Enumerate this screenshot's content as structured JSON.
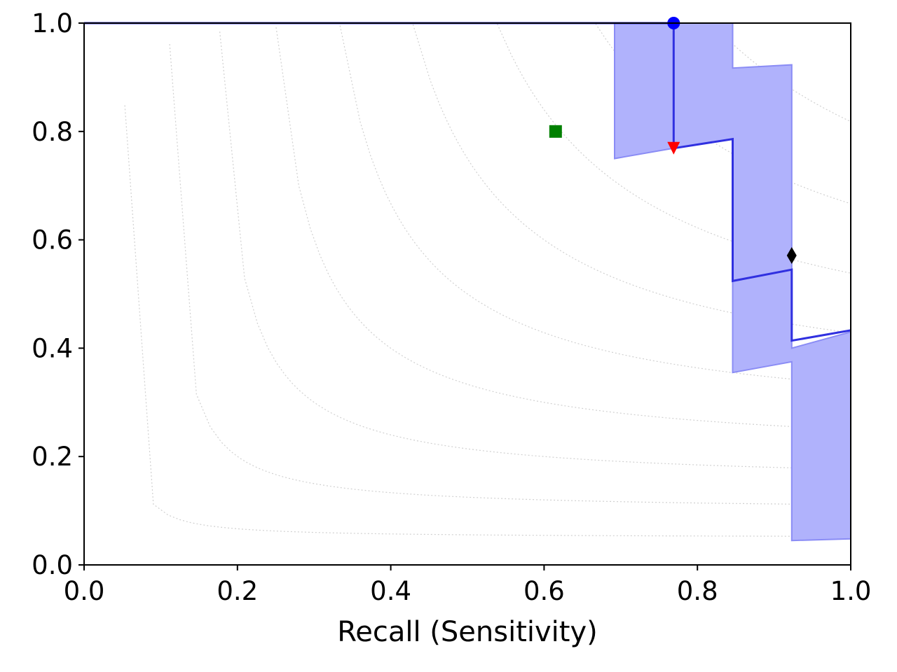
{
  "chart_data": {
    "type": "line",
    "title": "",
    "xlabel": "Recall (Sensitivity)",
    "ylabel": "",
    "xlim": [
      0.0,
      1.0
    ],
    "ylim": [
      0.0,
      1.0
    ],
    "x_ticks": [
      "0.0",
      "0.2",
      "0.4",
      "0.6",
      "0.8",
      "1.0"
    ],
    "y_ticks": [
      "0.0",
      "0.2",
      "0.4",
      "0.6",
      "0.8",
      "1.0"
    ],
    "grid": false,
    "legend": "none",
    "background_contours": {
      "style": "dotted",
      "color": "#d0d0d0",
      "levels": [
        0.1,
        0.2,
        0.3,
        0.4,
        0.5,
        0.6,
        0.7,
        0.8,
        0.9
      ]
    },
    "series": [
      {
        "kind": "line",
        "color": "#3030e0",
        "points": [
          [
            0.0,
            1.0
          ],
          [
            0.769,
            1.0
          ],
          [
            0.769,
            0.769
          ],
          [
            0.846,
            0.786
          ],
          [
            0.846,
            0.524
          ],
          [
            0.923,
            0.545
          ],
          [
            0.923,
            0.414
          ],
          [
            1.0,
            0.433
          ]
        ]
      },
      {
        "kind": "band",
        "color": "#b0b2fc",
        "edge_color": "#8a8cf5",
        "upper": [
          [
            0.692,
            1.0
          ],
          [
            0.846,
            1.0
          ],
          [
            0.846,
            0.917
          ],
          [
            0.923,
            0.923
          ],
          [
            0.923,
            0.4
          ],
          [
            1.0,
            0.43
          ]
        ],
        "lower": [
          [
            0.692,
            0.75
          ],
          [
            0.769,
            0.769
          ],
          [
            0.846,
            0.786
          ],
          [
            0.846,
            0.355
          ],
          [
            0.923,
            0.375
          ],
          [
            0.923,
            0.045
          ],
          [
            1.0,
            0.048
          ]
        ]
      }
    ],
    "markers": [
      {
        "shape": "circle",
        "color": "#0000ff",
        "x": 0.769,
        "y": 1.0
      },
      {
        "shape": "triangle-down",
        "color": "#ff0000",
        "x": 0.769,
        "y": 0.769
      },
      {
        "shape": "square",
        "color": "#008000",
        "x": 0.615,
        "y": 0.8
      },
      {
        "shape": "diamond",
        "color": "#000000",
        "x": 0.923,
        "y": 0.571
      }
    ]
  }
}
